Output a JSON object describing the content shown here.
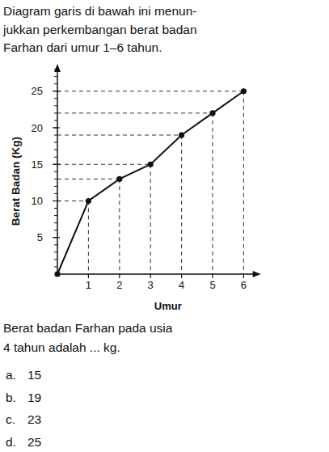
{
  "chart_data": {
    "type": "line",
    "x_label": "Umur",
    "y_label": "Berat Badan (Kg)",
    "x": [
      0,
      1,
      2,
      3,
      4,
      5,
      6
    ],
    "values": [
      0,
      10,
      13,
      15,
      19,
      22,
      25
    ],
    "color": "#111111",
    "marker": "circle",
    "xlim": [
      0,
      6.5
    ],
    "ylim": [
      0,
      28.5
    ],
    "xticks": [
      1,
      2,
      3,
      4,
      5,
      6
    ],
    "yticks": [
      5,
      10,
      15,
      20,
      25
    ],
    "grid": true
  },
  "question": {
    "intro_lines": [
      "Diagram garis di bawah ini menun-",
      "jukkan perkembangan berat badan",
      "Farhan dari umur 1–6 tahun."
    ],
    "prompt_lines": [
      "Berat badan Farhan pada usia",
      "4 tahun adalah ... kg."
    ],
    "options": [
      {
        "letter": "a.",
        "text": "15"
      },
      {
        "letter": "b.",
        "text": "19"
      },
      {
        "letter": "c.",
        "text": "23"
      },
      {
        "letter": "d.",
        "text": "25"
      }
    ]
  }
}
